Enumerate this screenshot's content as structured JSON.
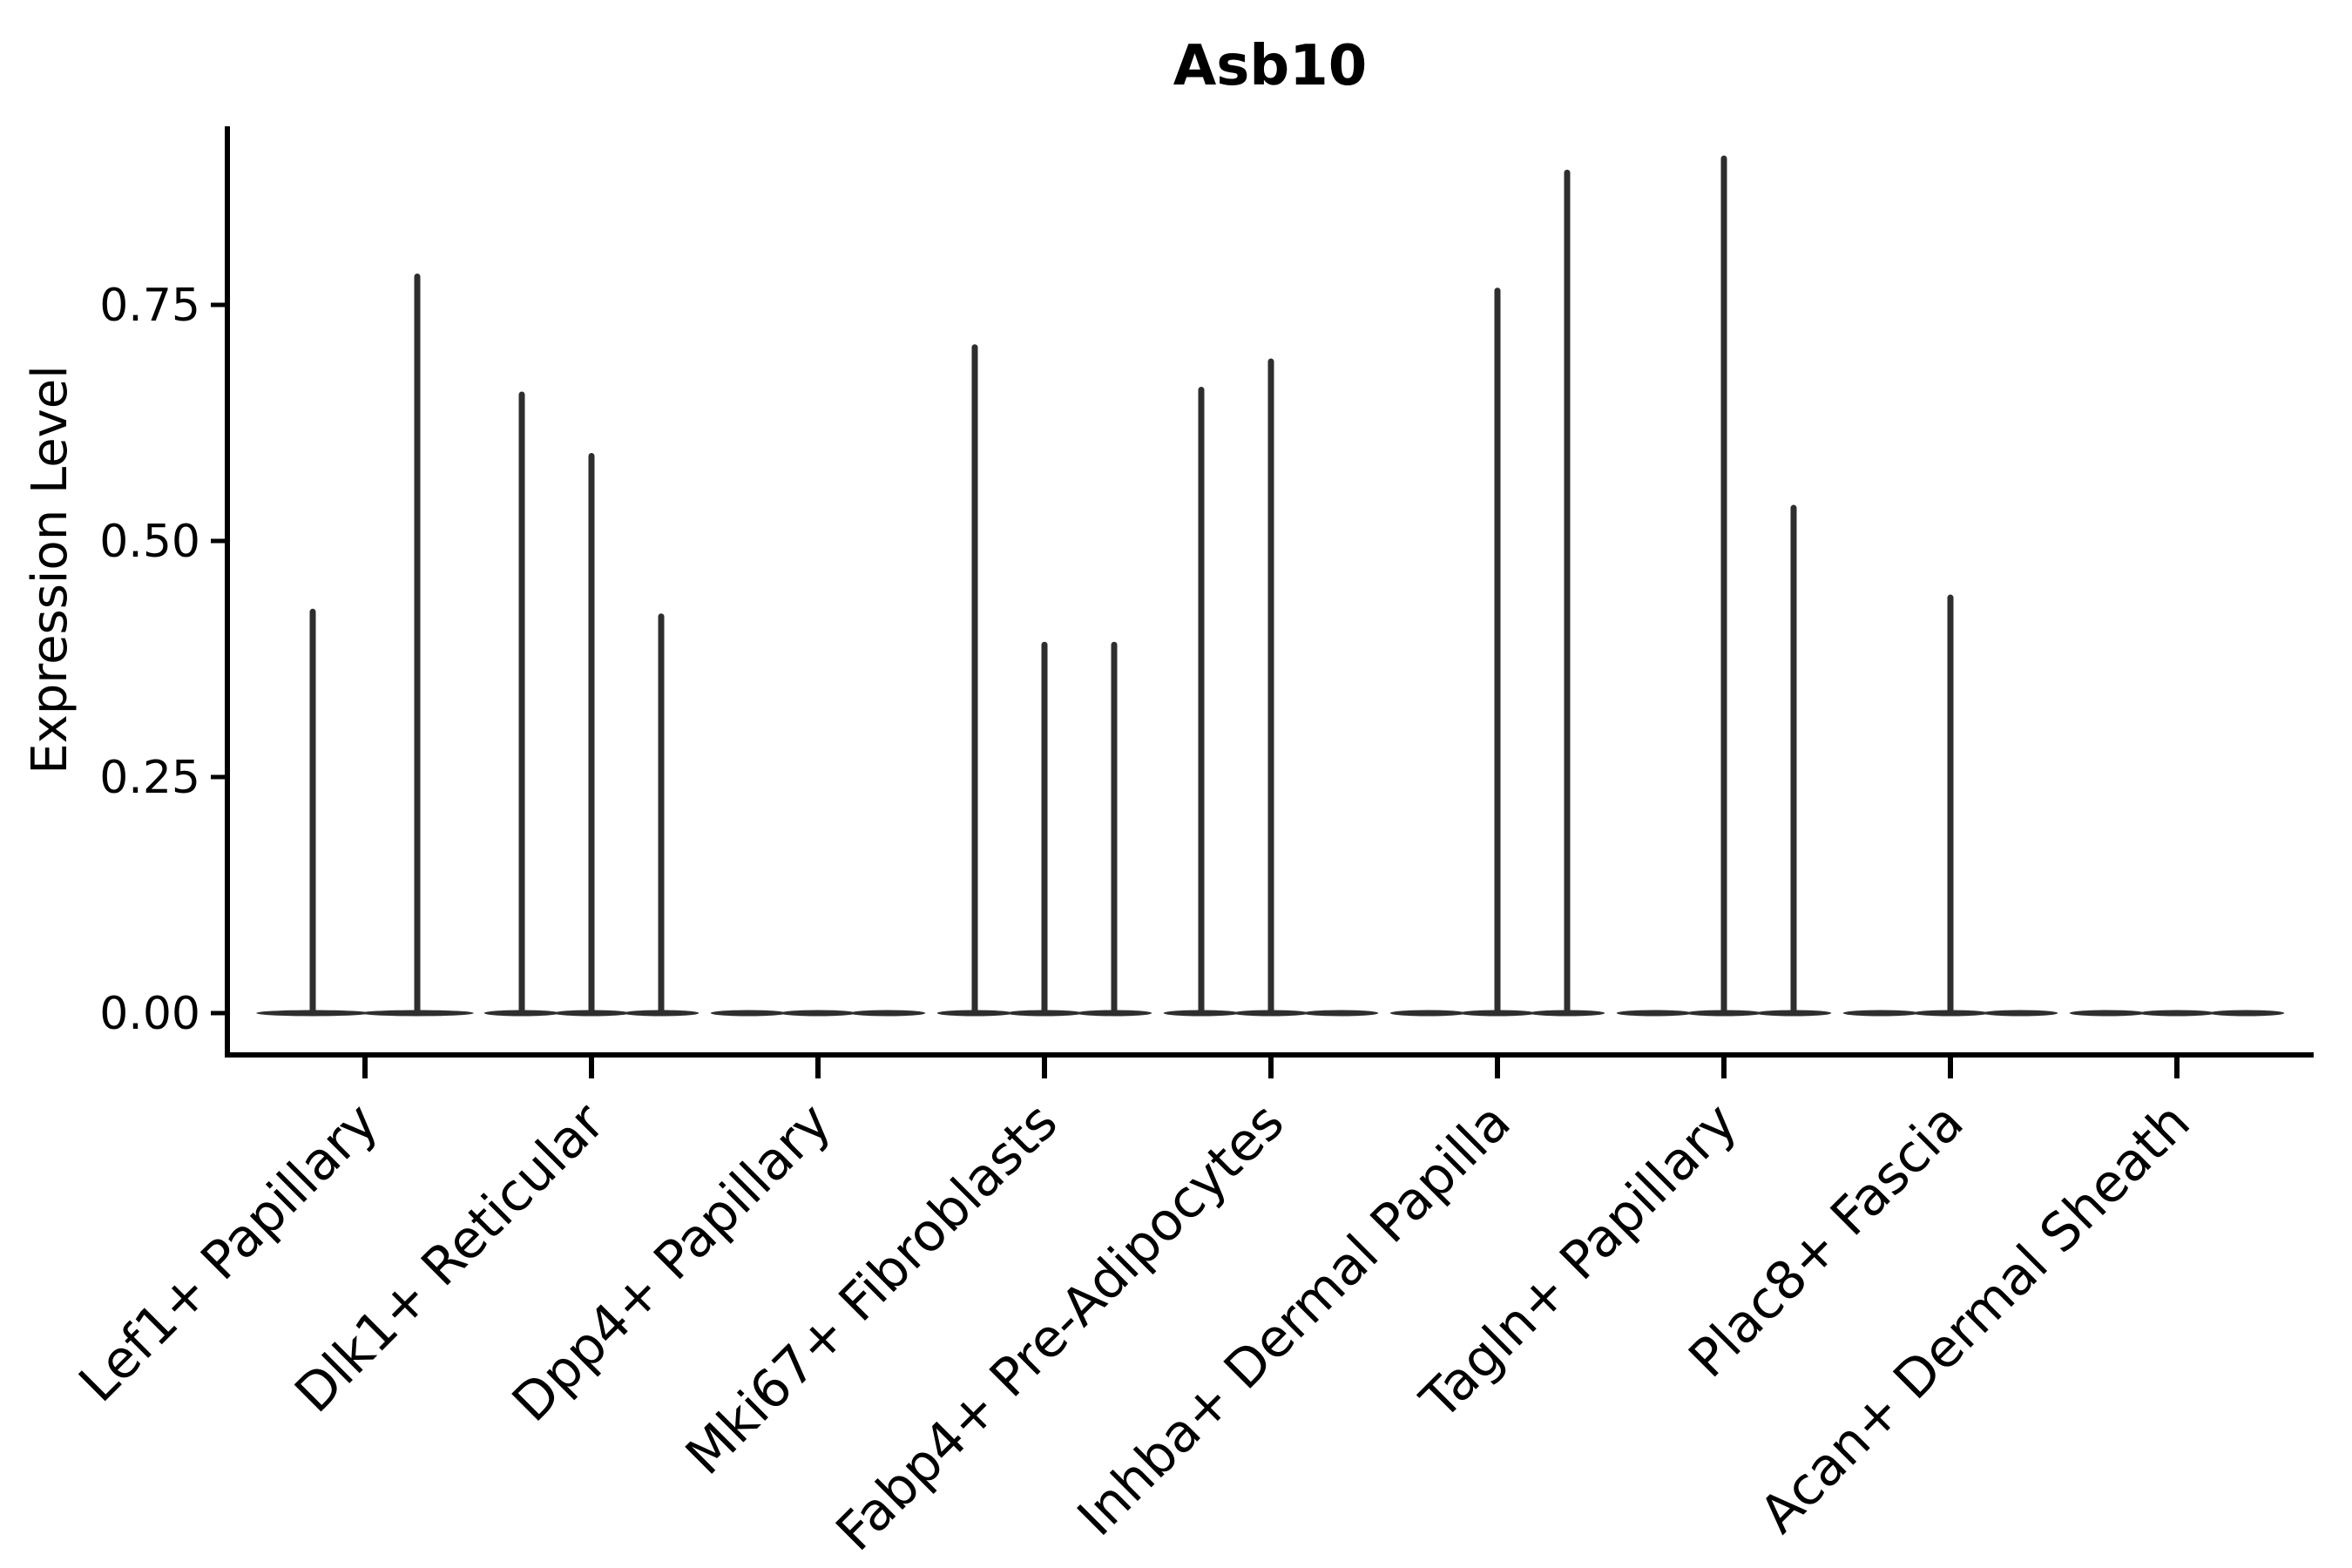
{
  "chart_data": {
    "type": "violin",
    "title": "Asb10",
    "ylabel": "Expression Level",
    "xlabel": "",
    "grid": false,
    "legend": null,
    "ink_color": "#2e2e2e",
    "axis_color": "#000000",
    "background_color": "#ffffff",
    "ylim": [
      0,
      0.94
    ],
    "yticks": [
      {
        "label": "0.00",
        "value": 0.0
      },
      {
        "label": "0.25",
        "value": 0.25
      },
      {
        "label": "0.50",
        "value": 0.5
      },
      {
        "label": "0.75",
        "value": 0.75
      }
    ],
    "categories": [
      "Lef1+ Papillary",
      "Dlk1+ Reticular",
      "Dpp4+ Papillary",
      "Mki67+ Fibroblasts",
      "Fabp4+ Pre-Adipocytes",
      "Inhba+ Dermal Papilla",
      "Tagln+ Papillary",
      "Plac8+ Fascia",
      "Acan+ Dermal Sheath"
    ],
    "groups": [
      {
        "category": "Lef1+ Papillary",
        "n_slots": 2,
        "violins": [
          {
            "slot": 0,
            "max": 0.425
          },
          {
            "slot": 1,
            "max": 0.78
          }
        ]
      },
      {
        "category": "Dlk1+ Reticular",
        "n_slots": 3,
        "violins": [
          {
            "slot": 0,
            "max": 0.655
          },
          {
            "slot": 1,
            "max": 0.59
          },
          {
            "slot": 2,
            "max": 0.42
          }
        ]
      },
      {
        "category": "Dpp4+ Papillary",
        "n_slots": 3,
        "violins": [
          {
            "slot": 0,
            "max": 0
          },
          {
            "slot": 1,
            "max": 0
          },
          {
            "slot": 2,
            "max": 0
          }
        ]
      },
      {
        "category": "Mki67+ Fibroblasts",
        "n_slots": 3,
        "violins": [
          {
            "slot": 0,
            "max": 0.705
          },
          {
            "slot": 1,
            "max": 0.39
          },
          {
            "slot": 2,
            "max": 0.39
          }
        ]
      },
      {
        "category": "Fabp4+ Pre-Adipocytes",
        "n_slots": 3,
        "violins": [
          {
            "slot": 0,
            "max": 0.66
          },
          {
            "slot": 1,
            "max": 0.69
          },
          {
            "slot": 2,
            "max": 0
          }
        ]
      },
      {
        "category": "Inhba+ Dermal Papilla",
        "n_slots": 3,
        "violins": [
          {
            "slot": 0,
            "max": 0
          },
          {
            "slot": 1,
            "max": 0.765
          },
          {
            "slot": 2,
            "max": 0.89
          }
        ]
      },
      {
        "category": "Tagln+ Papillary",
        "n_slots": 3,
        "violins": [
          {
            "slot": 0,
            "max": 0
          },
          {
            "slot": 1,
            "max": 0.905
          },
          {
            "slot": 2,
            "max": 0.535
          }
        ]
      },
      {
        "category": "Plac8+ Fascia",
        "n_slots": 3,
        "violins": [
          {
            "slot": 0,
            "max": 0
          },
          {
            "slot": 1,
            "max": 0.44
          },
          {
            "slot": 2,
            "max": 0
          }
        ]
      },
      {
        "category": "Acan+ Dermal Sheath",
        "n_slots": 3,
        "violins": [
          {
            "slot": 0,
            "max": 0
          },
          {
            "slot": 1,
            "max": 0
          },
          {
            "slot": 2,
            "max": 0
          }
        ]
      }
    ]
  }
}
